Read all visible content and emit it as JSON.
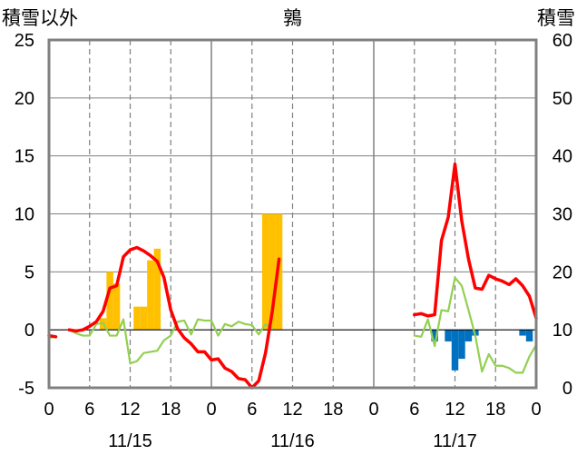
{
  "chart_data": {
    "type": "bar+line",
    "title": "鶉",
    "ylabel_left": "積雪以外",
    "ylabel_right": "積雪",
    "ylim_left": [
      -5,
      25
    ],
    "ylim_right": [
      0,
      60
    ],
    "yticks_left": [
      "25",
      "20",
      "15",
      "10",
      "5",
      "0",
      "-5"
    ],
    "yticks_right": [
      "60",
      "50",
      "40",
      "30",
      "20",
      "10",
      "0"
    ],
    "xlim_hours": [
      0,
      72
    ],
    "xticks": [
      "0",
      "6",
      "12",
      "18",
      "0",
      "6",
      "12",
      "18",
      "0",
      "6",
      "12",
      "18",
      "0"
    ],
    "date_labels": [
      "11/15",
      "11/16",
      "11/17"
    ],
    "grid": "dashed vertical at 6-hour marks",
    "colors": {
      "temperature": "#ff0000",
      "secondary_line": "#92d050",
      "precip_positive": "#ffc000",
      "precip_negative": "#0070c0",
      "baseline": "#7030a0",
      "frame": "#808080"
    },
    "series": [
      {
        "type": "line",
        "axis": "left",
        "color": "#ff0000",
        "x": [
          3,
          4,
          5,
          6,
          7,
          8,
          9,
          10,
          11,
          12,
          13,
          14,
          15,
          16,
          17,
          18,
          19,
          20,
          21,
          22,
          23,
          24,
          25,
          26,
          27,
          28,
          29,
          30,
          31,
          32,
          33,
          34
        ],
        "y": [
          0,
          -0.1,
          0,
          0.3,
          0.7,
          1.6,
          3.6,
          3.8,
          6.3,
          6.9,
          7.1,
          6.8,
          6.4,
          5.9,
          4.5,
          1.7,
          0.1,
          -0.7,
          -1.2,
          -1.9,
          -1.9,
          -2.6,
          -2.5,
          -3.3,
          -3.6,
          -4.2,
          -4.3,
          -5,
          -4.4,
          -2,
          1.6,
          6.1
        ]
      },
      {
        "type": "line",
        "axis": "left",
        "color": "#92d050",
        "x": [
          3,
          4,
          5,
          6,
          7,
          8,
          9,
          10,
          11,
          12,
          13,
          14,
          15,
          16,
          17,
          18,
          19,
          20,
          21,
          22,
          23,
          24,
          25,
          26,
          27,
          28,
          29,
          30,
          31,
          32,
          33
        ],
        "y": [
          0,
          -0.3,
          -0.5,
          -0.5,
          0.5,
          0.6,
          -0.5,
          -0.5,
          0.9,
          -2.9,
          -2.7,
          -2,
          -1.9,
          -1.8,
          -0.9,
          -0.5,
          0.7,
          0.8,
          -0.4,
          0.9,
          0.8,
          0.8,
          -0.5,
          0.5,
          0.3,
          0.7,
          0.5,
          0.4,
          -0.4,
          0.5,
          0.1
        ]
      },
      {
        "type": "line",
        "axis": "left",
        "color": "#ff0000",
        "x": [
          54,
          55,
          56,
          57,
          58,
          59,
          60,
          61,
          62,
          63,
          64,
          65,
          66,
          67,
          68,
          69,
          70,
          71,
          72
        ],
        "y": [
          1.3,
          1.4,
          1.2,
          1.3,
          7.7,
          9.7,
          14.3,
          9.4,
          6.1,
          3.6,
          3.5,
          4.7,
          4.4,
          4.2,
          3.9,
          4.4,
          3.8,
          2.9,
          1
        ]
      },
      {
        "type": "line",
        "axis": "left",
        "color": "#92d050",
        "x": [
          54,
          55,
          56,
          57,
          58,
          59,
          60,
          61,
          62,
          63,
          64,
          65,
          66,
          67,
          68,
          69,
          70,
          71,
          72
        ],
        "y": [
          -0.5,
          -0.6,
          0.9,
          -1.4,
          1.7,
          1.6,
          4.5,
          3.8,
          1.7,
          -0.5,
          -3.6,
          -2.1,
          -3.1,
          -3.1,
          -3.3,
          -3.7,
          -3.7,
          -2.3,
          -1.3
        ]
      },
      {
        "type": "bar",
        "axis": "left",
        "color": "#ffc000",
        "x": [
          8,
          9,
          10,
          11,
          12,
          13,
          14,
          15,
          16,
          17,
          18,
          19,
          20,
          21,
          22,
          23,
          24,
          25,
          26,
          27,
          28,
          29,
          30,
          31,
          32,
          33,
          34
        ],
        "y": [
          1,
          5,
          4,
          0,
          0,
          2,
          2,
          6,
          7,
          0,
          0,
          0,
          0,
          0,
          0,
          0,
          0,
          0,
          0,
          0,
          0,
          0,
          0,
          0,
          10,
          10,
          10
        ]
      },
      {
        "type": "bar",
        "axis": "left",
        "color": "#0070c0",
        "x": [
          57,
          58,
          59,
          60,
          61,
          62,
          63,
          64,
          65,
          66,
          67,
          68,
          69,
          70,
          71
        ],
        "y": [
          -1,
          0,
          -1,
          -3.5,
          -2.5,
          -1,
          -0.5,
          0,
          0,
          0,
          0,
          0,
          0,
          -0.5,
          -1
        ]
      },
      {
        "type": "line",
        "axis": "left",
        "color": "#7030a0",
        "x": [
          0,
          72
        ],
        "y": [
          -5,
          -5
        ]
      },
      {
        "type": "line",
        "axis": "left",
        "color": "#ff0000",
        "x": [
          0,
          1
        ],
        "y": [
          -0.5,
          -0.6
        ]
      },
      {
        "type": "line",
        "axis": "left",
        "color": "#92d050",
        "x": [
          0,
          1
        ],
        "y": [
          -0.7,
          -0.6
        ]
      }
    ]
  }
}
